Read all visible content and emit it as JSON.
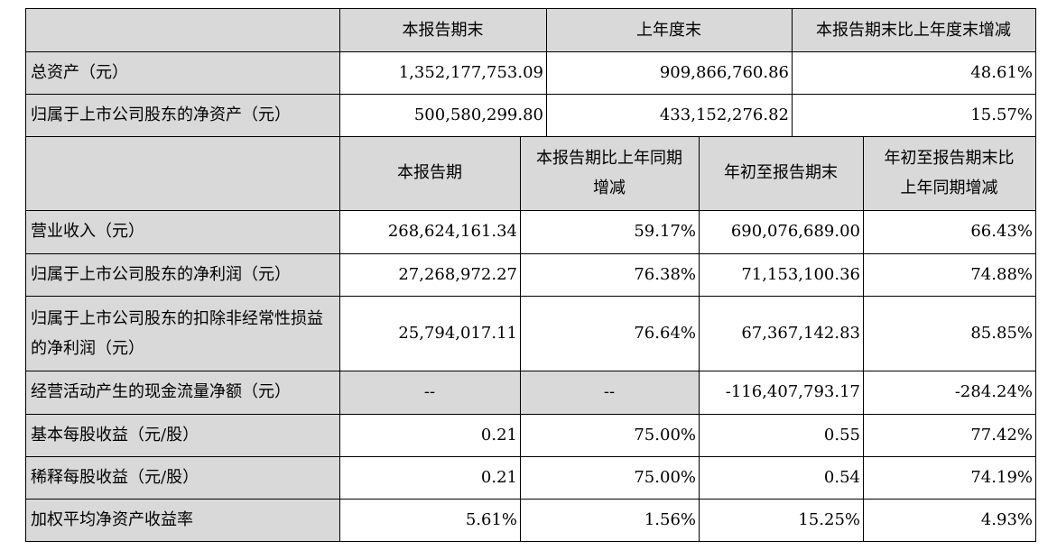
{
  "table1": {
    "headers": [
      "本报告期末",
      "上年度末",
      "本报告期末比上年度末增减"
    ],
    "rows": [
      {
        "label": "总资产（元）",
        "values": [
          "1,352,177,753.09",
          "909,866,760.86",
          "48.61%"
        ]
      },
      {
        "label": "归属于上市公司股东的净资产（元）",
        "values": [
          "500,580,299.80",
          "433,152,276.82",
          "15.57%"
        ]
      }
    ]
  },
  "table2": {
    "headers": [
      {
        "line1": "本报告期",
        "line2": ""
      },
      {
        "line1": "本报告期比上年同期",
        "line2": "增减"
      },
      {
        "line1": "年初至报告期末",
        "line2": ""
      },
      {
        "line1": "年初至报告期末比",
        "line2": "上年同期增减"
      }
    ],
    "rows": [
      {
        "label": "营业收入（元）",
        "values": [
          "268,624,161.34",
          "59.17%",
          "690,076,689.00",
          "66.43%"
        ]
      },
      {
        "label": "归属于上市公司股东的净利润（元）",
        "values": [
          "27,268,972.27",
          "76.38%",
          "71,153,100.36",
          "74.88%"
        ]
      },
      {
        "label": "归属于上市公司股东的扣除非经常性损益的净利润（元）",
        "values": [
          "25,794,017.11",
          "76.64%",
          "67,367,142.83",
          "85.85%"
        ]
      },
      {
        "label": "经营活动产生的现金流量净额（元）",
        "values": [
          "--",
          "--",
          "-116,407,793.17",
          "-284.24%"
        ]
      },
      {
        "label": "基本每股收益（元/股）",
        "values": [
          "0.21",
          "75.00%",
          "0.55",
          "77.42%"
        ]
      },
      {
        "label": "稀释每股收益（元/股）",
        "values": [
          "0.21",
          "75.00%",
          "0.54",
          "74.19%"
        ]
      },
      {
        "label": "加权平均净资产收益率",
        "values": [
          "5.61%",
          "1.56%",
          "15.25%",
          "4.93%"
        ]
      }
    ]
  }
}
